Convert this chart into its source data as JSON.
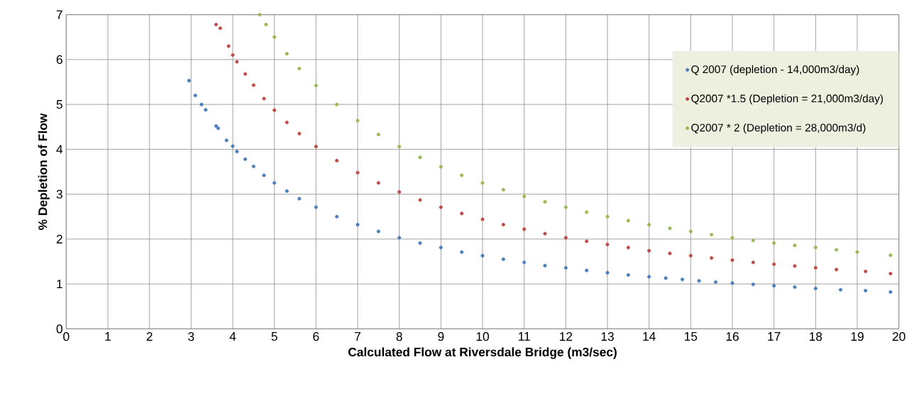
{
  "chart_data": {
    "type": "scatter",
    "xlabel": "Calculated Flow at Riversdale Bridge (m3/sec)",
    "ylabel": "% Depletion of Flow",
    "xlim": [
      0,
      20
    ],
    "xticks": [
      0,
      1,
      2,
      3,
      4,
      5,
      6,
      7,
      8,
      9,
      10,
      11,
      12,
      13,
      14,
      15,
      16,
      17,
      18,
      19,
      20
    ],
    "ylim": [
      0,
      7
    ],
    "yticks": [
      0,
      1,
      2,
      3,
      4,
      5,
      6,
      7
    ],
    "grid": true,
    "legend": "top right",
    "marker": "circle",
    "series": [
      {
        "name": "Q 2007 (depletion - 14,000m3/day)",
        "color": "#4a7ebb",
        "x": [
          2.95,
          3.1,
          3.25,
          3.35,
          3.6,
          3.65,
          3.85,
          4.0,
          4.1,
          4.3,
          4.5,
          4.75,
          5,
          5.3,
          5.6,
          6,
          6.5,
          7,
          7.5,
          8,
          8.5,
          9,
          9.5,
          10,
          10.5,
          11,
          11.5,
          12,
          12.5,
          13,
          13.5,
          14,
          14.4,
          14.8,
          15.2,
          15.6,
          16,
          16.5,
          17,
          17.5,
          18,
          18.6,
          19.2,
          19.8
        ],
        "values": [
          5.53,
          5.2,
          5.0,
          4.88,
          4.52,
          4.47,
          4.2,
          4.07,
          3.95,
          3.78,
          3.62,
          3.42,
          3.25,
          3.07,
          2.9,
          2.71,
          2.5,
          2.32,
          2.17,
          2.03,
          1.91,
          1.81,
          1.71,
          1.63,
          1.55,
          1.48,
          1.41,
          1.36,
          1.3,
          1.25,
          1.2,
          1.16,
          1.13,
          1.1,
          1.07,
          1.04,
          1.02,
          0.99,
          0.96,
          0.93,
          0.9,
          0.87,
          0.85,
          0.82
        ]
      },
      {
        "name": "Q2007 *1.5 (Depletion = 21,000m3/day)",
        "color": "#be4b48",
        "x": [
          3.6,
          3.7,
          3.9,
          4.0,
          4.1,
          4.3,
          4.5,
          4.75,
          5,
          5.3,
          5.6,
          6,
          6.5,
          7,
          7.5,
          8,
          8.5,
          9,
          9.5,
          10,
          10.5,
          11,
          11.5,
          12,
          12.5,
          13,
          13.5,
          14,
          14.5,
          15,
          15.5,
          16,
          16.5,
          17,
          17.5,
          18,
          18.5,
          19.2,
          19.8
        ],
        "values": [
          6.78,
          6.7,
          6.3,
          6.1,
          5.95,
          5.68,
          5.43,
          5.13,
          4.87,
          4.6,
          4.35,
          4.06,
          3.75,
          3.48,
          3.25,
          3.05,
          2.87,
          2.71,
          2.57,
          2.44,
          2.32,
          2.22,
          2.12,
          2.03,
          1.95,
          1.88,
          1.81,
          1.74,
          1.68,
          1.63,
          1.58,
          1.53,
          1.48,
          1.44,
          1.4,
          1.36,
          1.32,
          1.28,
          1.23
        ]
      },
      {
        "name": "Q2007 * 2 (Depletion = 28,000m3/d)",
        "color": "#98b954",
        "x": [
          4.65,
          4.8,
          5,
          5.3,
          5.6,
          6,
          6.5,
          7,
          7.5,
          8,
          8.5,
          9,
          9.5,
          10,
          10.5,
          11,
          11.5,
          12,
          12.5,
          13,
          13.5,
          14,
          14.5,
          15,
          15.5,
          16,
          16.5,
          17,
          17.5,
          18,
          18.5,
          19,
          19.8
        ],
        "values": [
          7.0,
          6.78,
          6.5,
          6.13,
          5.8,
          5.42,
          5.0,
          4.64,
          4.33,
          4.06,
          3.82,
          3.61,
          3.42,
          3.25,
          3.1,
          2.95,
          2.83,
          2.71,
          2.6,
          2.5,
          2.41,
          2.32,
          2.24,
          2.17,
          2.1,
          2.03,
          1.97,
          1.91,
          1.86,
          1.81,
          1.76,
          1.71,
          1.64
        ]
      }
    ]
  }
}
